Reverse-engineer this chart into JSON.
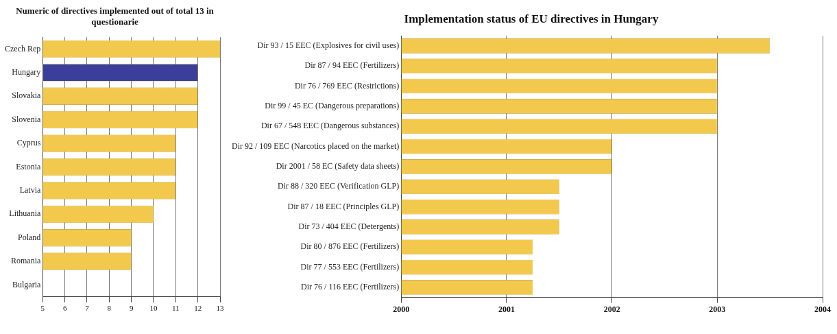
{
  "chart_data": [
    {
      "type": "bar",
      "orientation": "horizontal",
      "title": "Numeric of directives implemented out of total 13 in questionarie",
      "categories": [
        "Czech Rep",
        "Hungary",
        "Slovakia",
        "Slovenia",
        "Cyprus",
        "Estonia",
        "Latvia",
        "Lithuania",
        "Poland",
        "Romania",
        "Bulgaria"
      ],
      "values": [
        13,
        12,
        12,
        12,
        11,
        11,
        11,
        10,
        9,
        9,
        null
      ],
      "colors": [
        "#f2c94c",
        "#3b3f9a",
        "#f2c94c",
        "#f2c94c",
        "#f2c94c",
        "#f2c94c",
        "#f2c94c",
        "#f2c94c",
        "#f2c94c",
        "#f2c94c",
        "#f2c94c"
      ],
      "xlim": [
        5,
        13
      ],
      "xticks": [
        5,
        6,
        7,
        8,
        9,
        10,
        11,
        12,
        13
      ],
      "grid": "x",
      "legend": false
    },
    {
      "type": "bar",
      "orientation": "horizontal",
      "title": "Implementation status of EU directives in Hungary",
      "categories": [
        "Dir 93 / 15 EEC (Explosives for civil uses)",
        "Dir 87 / 94 EEC (Fertilizers)",
        "Dir 76 / 769 EEC (Restrictions)",
        "Dir 99 / 45 EC (Dangerous preparations)",
        "Dir 67 / 548 EEC (Dangerous substances)",
        "Dir 92 / 109 EEC (Narcotics placed on the market)",
        "Dir 2001 / 58 EC (Safety data sheets)",
        "Dir 88 / 320 EEC (Verification GLP)",
        "Dir 87 / 18 EEC (Principles GLP)",
        "Dir 73 / 404 EEC (Detergents)",
        "Dir 80 / 876 EEC (Fertilizers)",
        "Dir 77 / 553 EEC (Fertilizers)",
        "Dir 76 / 116 EEC (Fertilizers)"
      ],
      "values": [
        2003.5,
        2003,
        2003,
        2003,
        2003,
        2002,
        2002,
        2001.5,
        2001.5,
        2001.5,
        2001.25,
        2001.25,
        2001.25
      ],
      "color": "#f2c94c",
      "xlim": [
        2000,
        2004
      ],
      "xticks": [
        2000,
        2001,
        2002,
        2003,
        2004
      ],
      "grid": "x",
      "legend": false
    }
  ]
}
